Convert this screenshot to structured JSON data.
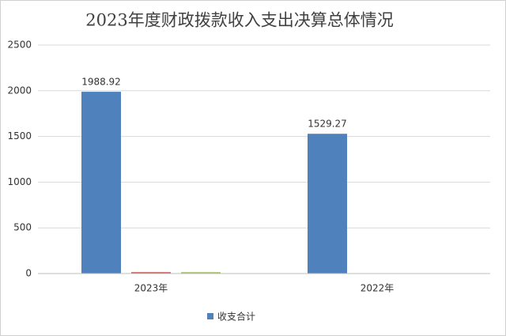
{
  "chart_data": {
    "type": "bar",
    "title": "2023年度财政拨款收入支出决算总体情况",
    "categories": [
      "2023年",
      "2022年"
    ],
    "series": [
      {
        "name": "收支合计",
        "color": "#4f81bd",
        "values": [
          1988.92,
          1529.27
        ],
        "data_labels": true
      },
      {
        "color": "#c0504d",
        "values": [
          15,
          0
        ]
      },
      {
        "color": "#9bbb59",
        "values": [
          15,
          0
        ]
      }
    ],
    "ylim": [
      0,
      2500
    ],
    "yticks": [
      0,
      500,
      1000,
      1500,
      2000,
      2500
    ],
    "grid": true,
    "legend": "bottom"
  }
}
